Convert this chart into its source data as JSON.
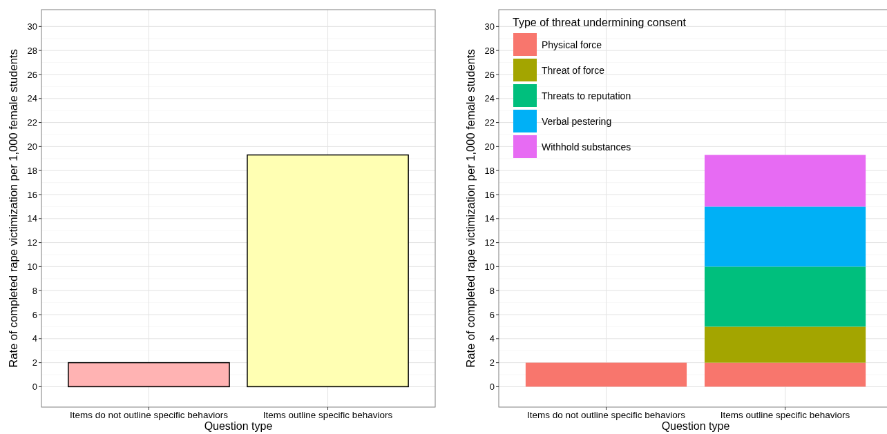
{
  "chart_data": [
    {
      "type": "bar",
      "xlabel": "Question type",
      "ylabel": "Rate of completed rape victimization per 1,000 female students",
      "categories": [
        "Items do not outline specific behaviors",
        "Items outline specific behaviors"
      ],
      "values": [
        2.0,
        19.3
      ],
      "colors": [
        "#ffb3b3",
        "#ffffb3"
      ],
      "ylim": [
        -1.7,
        31.4
      ],
      "yticks": [
        0,
        2,
        4,
        6,
        8,
        10,
        12,
        14,
        16,
        18,
        20,
        22,
        24,
        26,
        28,
        30
      ],
      "grid": true
    },
    {
      "type": "bar",
      "stacked": true,
      "xlabel": "Question type",
      "ylabel": "Rate of completed rape victimization per 1,000 female students",
      "legend_title": "Type of threat undermining consent",
      "legend": "top left",
      "categories": [
        "Items do not outline specific behaviors",
        "Items outline specific behaviors"
      ],
      "series": [
        {
          "name": "Physical force",
          "color": "#f8766d",
          "values": [
            2.0,
            2.0
          ]
        },
        {
          "name": "Threat of force",
          "color": "#a3a500",
          "values": [
            null,
            3.0
          ]
        },
        {
          "name": "Threats to reputation",
          "color": "#00bf7d",
          "values": [
            null,
            5.0
          ]
        },
        {
          "name": "Verbal pestering",
          "color": "#00b0f6",
          "values": [
            null,
            5.0
          ]
        },
        {
          "name": "Withhold substances",
          "color": "#e76bf3",
          "values": [
            null,
            4.3
          ]
        }
      ],
      "ylim": [
        -1.7,
        31.4
      ],
      "yticks": [
        0,
        2,
        4,
        6,
        8,
        10,
        12,
        14,
        16,
        18,
        20,
        22,
        24,
        26,
        28,
        30
      ],
      "grid": true
    }
  ]
}
